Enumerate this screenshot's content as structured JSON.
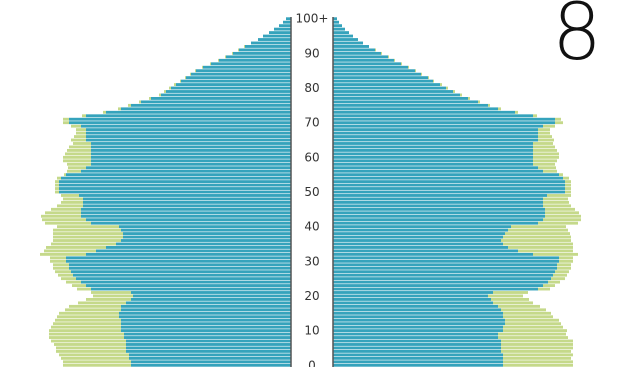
{
  "big_number": "8",
  "colors": {
    "background": "#ffffff",
    "base": "#35a3bc",
    "excess": "#c5d98a",
    "tick_text": "#333333"
  },
  "chart_data": {
    "type": "bar",
    "orientation": "horizontal-mirrored",
    "title": "",
    "xlabel": "",
    "ylabel": "",
    "y_ticks": [
      "0",
      "10",
      "20",
      "30",
      "40",
      "50",
      "60",
      "70",
      "80",
      "90",
      "100+"
    ],
    "age_range": [
      0,
      100
    ],
    "grid": false,
    "legend": "none",
    "series": [
      {
        "side": "left",
        "base": [
          160,
          160,
          162,
          162,
          165,
          165,
          165,
          165,
          167,
          167,
          170,
          170,
          170,
          170,
          172,
          172,
          170,
          170,
          165,
          160,
          158,
          160,
          200,
          205,
          210,
          215,
          218,
          220,
          222,
          222,
          225,
          225,
          205,
          195,
          185,
          175,
          170,
          168,
          168,
          170,
          172,
          200,
          205,
          210,
          210,
          210,
          208,
          208,
          208,
          212,
          232,
          232,
          232,
          232,
          230,
          225,
          210,
          205,
          200,
          200,
          200,
          200,
          200,
          200,
          200,
          205,
          205,
          205,
          205,
          210,
          222,
          222,
          205,
          185,
          170,
          160,
          150,
          140,
          130,
          125,
          120,
          115,
          110,
          105,
          100,
          95,
          88,
          80,
          72,
          65,
          58,
          52,
          46,
          40,
          33,
          28,
          22,
          17,
          12,
          8,
          5
        ],
        "excess": [
          68,
          68,
          68,
          70,
          70,
          70,
          72,
          75,
          75,
          75,
          72,
          70,
          68,
          66,
          62,
          60,
          56,
          52,
          48,
          45,
          40,
          40,
          14,
          14,
          15,
          15,
          15,
          16,
          16,
          16,
          16,
          16,
          46,
          52,
          60,
          65,
          68,
          70,
          70,
          68,
          62,
          46,
          44,
          40,
          36,
          30,
          26,
          22,
          20,
          18,
          4,
          4,
          4,
          4,
          4,
          2,
          14,
          18,
          24,
          28,
          28,
          26,
          24,
          22,
          18,
          15,
          12,
          10,
          10,
          10,
          6,
          6,
          4,
          3,
          3,
          3,
          2,
          2,
          2,
          2,
          2,
          2,
          1,
          1,
          1,
          1,
          1,
          1,
          1,
          1,
          1,
          1,
          1,
          0,
          0,
          0,
          0,
          0,
          0,
          0,
          0
        ]
      },
      {
        "side": "right",
        "base": [
          170,
          170,
          170,
          170,
          168,
          168,
          168,
          168,
          165,
          165,
          170,
          170,
          172,
          172,
          170,
          170,
          168,
          165,
          160,
          158,
          155,
          160,
          205,
          210,
          215,
          218,
          220,
          222,
          224,
          224,
          226,
          226,
          200,
          185,
          175,
          170,
          168,
          170,
          172,
          175,
          178,
          205,
          210,
          212,
          212,
          212,
          210,
          210,
          210,
          214,
          232,
          232,
          232,
          232,
          230,
          226,
          210,
          205,
          200,
          200,
          200,
          200,
          200,
          200,
          200,
          205,
          205,
          205,
          205,
          210,
          222,
          222,
          200,
          182,
          165,
          155,
          145,
          135,
          127,
          120,
          113,
          107,
          100,
          95,
          88,
          82,
          75,
          68,
          61,
          55,
          48,
          42,
          36,
          30,
          25,
          20,
          16,
          12,
          9,
          6,
          4
        ],
        "excess": [
          70,
          70,
          68,
          70,
          70,
          72,
          72,
          72,
          70,
          68,
          64,
          60,
          56,
          54,
          50,
          48,
          45,
          42,
          40,
          38,
          35,
          35,
          12,
          12,
          12,
          14,
          14,
          14,
          14,
          14,
          14,
          14,
          45,
          55,
          65,
          70,
          70,
          68,
          65,
          60,
          55,
          40,
          38,
          36,
          34,
          30,
          28,
          26,
          25,
          24,
          6,
          6,
          6,
          6,
          6,
          4,
          14,
          18,
          22,
          24,
          26,
          26,
          24,
          22,
          20,
          16,
          14,
          12,
          12,
          12,
          8,
          6,
          4,
          3,
          3,
          2,
          2,
          2,
          2,
          2,
          2,
          2,
          1,
          1,
          1,
          1,
          1,
          1,
          1,
          1,
          1,
          1,
          0,
          0,
          0,
          0,
          0,
          0,
          0,
          0,
          0
        ]
      }
    ]
  }
}
